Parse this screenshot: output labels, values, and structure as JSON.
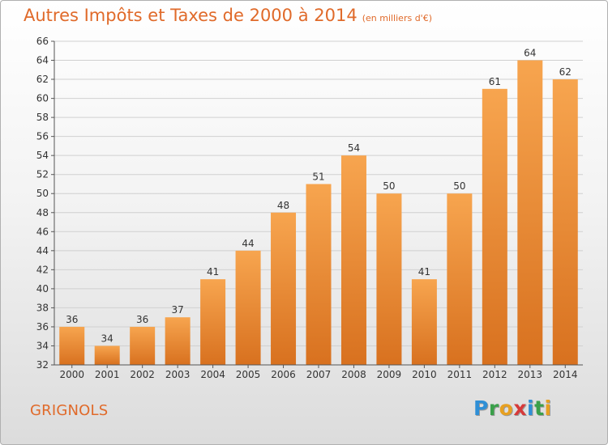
{
  "title": "Autres Impôts et Taxes de 2000 à 2014",
  "unit_note": "(en milliers d'€)",
  "place": "GRIGNOLS",
  "brand": {
    "letters": [
      "P",
      "r",
      "o",
      "x",
      "i",
      "t",
      "i"
    ],
    "colors": [
      "#2f8fd6",
      "#3aa04a",
      "#e7a021",
      "#d63a3a",
      "#2f8fd6",
      "#3aa04a",
      "#e7a021"
    ]
  },
  "colors": {
    "bar_light": "#f7a54f",
    "bar_dark": "#d8711f",
    "grid": "#d0d0d0",
    "text": "#333333",
    "accent": "#e06a2a"
  },
  "chart_data": {
    "type": "bar",
    "categories": [
      "2000",
      "2001",
      "2002",
      "2003",
      "2004",
      "2005",
      "2006",
      "2007",
      "2008",
      "2009",
      "2010",
      "2011",
      "2012",
      "2013",
      "2014"
    ],
    "values": [
      36,
      34,
      36,
      37,
      41,
      44,
      48,
      51,
      54,
      50,
      41,
      50,
      61,
      64,
      62
    ],
    "ylim": [
      32,
      66
    ],
    "yticks": [
      32,
      34,
      36,
      38,
      40,
      42,
      44,
      46,
      48,
      50,
      52,
      54,
      56,
      58,
      60,
      62,
      64,
      66
    ],
    "grid": true
  }
}
